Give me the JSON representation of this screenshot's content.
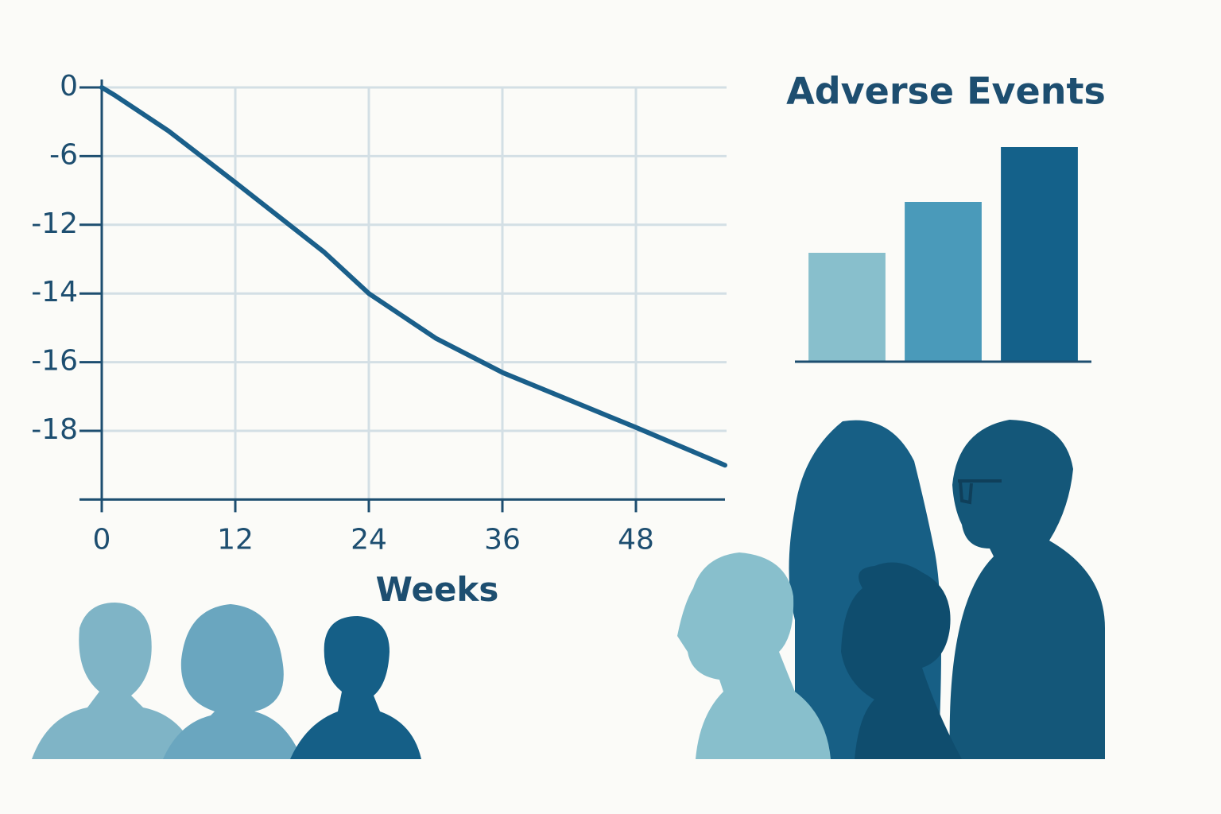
{
  "chart_data": [
    {
      "type": "line",
      "x": [
        0,
        1.2,
        6,
        12,
        20,
        24,
        30,
        36,
        48,
        56
      ],
      "values": [
        0,
        -0.7,
        -3.8,
        -8.3,
        -12.8,
        -14,
        -15.3,
        -16.3,
        -17.9,
        -19
      ],
      "color": "#1a5f8a",
      "x_label": "Weeks",
      "xlim": [
        0,
        56
      ],
      "xticks": [
        0,
        12,
        24,
        36,
        48
      ],
      "ylim": [
        -20,
        0
      ],
      "yticks": [
        0,
        -6,
        -12,
        -14,
        -16,
        -18
      ],
      "grid": true
    },
    {
      "type": "bar",
      "title": "Adverse Events",
      "categories": [
        null,
        null,
        null
      ],
      "values": [
        137,
        201,
        270
      ],
      "colors": [
        "#88bfcc",
        "#4a9aba",
        "#14618a"
      ],
      "ylim": [
        0,
        300
      ]
    }
  ]
}
